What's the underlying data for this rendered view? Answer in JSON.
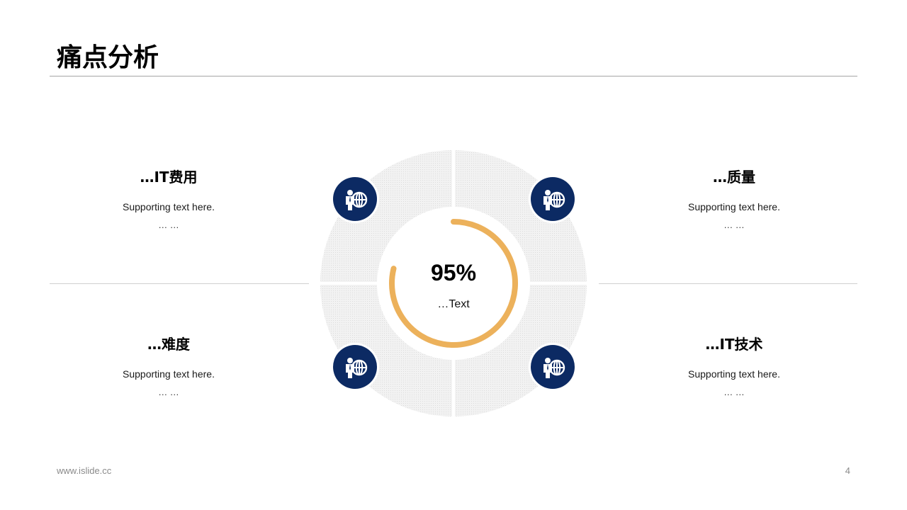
{
  "title": "痛点分析",
  "center": {
    "value": "95%",
    "label": "…Text",
    "progress": 0.95
  },
  "points": [
    {
      "heading": "…IT费用",
      "body": "Supporting  text here.",
      "more": "… …",
      "icon": "person-globe-icon"
    },
    {
      "heading": "…质量",
      "body": "Supporting  text here.",
      "more": "… …",
      "icon": "person-globe-icon"
    },
    {
      "heading": "…难度",
      "body": "Supporting  text here.",
      "more": "… …",
      "icon": "person-globe-icon"
    },
    {
      "heading": "…IT技术",
      "body": "Supporting  text here.",
      "more": "… …",
      "icon": "person-globe-icon"
    }
  ],
  "colors": {
    "icon_bg": "#0c2a63",
    "progress": "#ecb15b",
    "segment": "#ececec"
  },
  "footer": {
    "url": "www.islide.cc",
    "page": "4"
  }
}
